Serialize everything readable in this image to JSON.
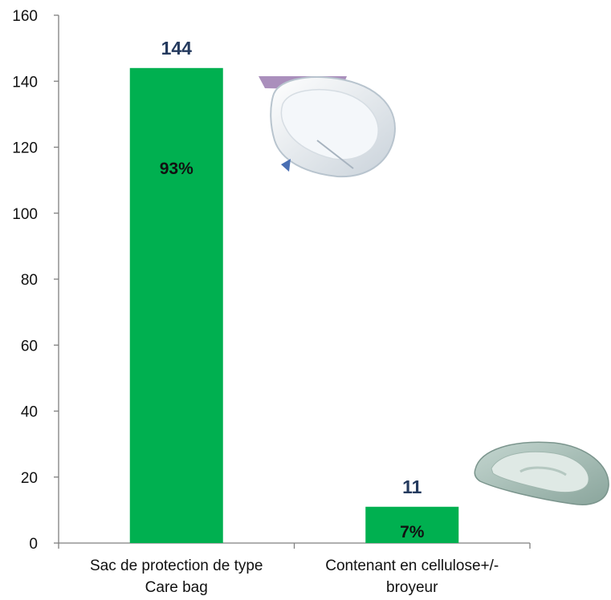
{
  "chart_data": {
    "type": "bar",
    "categories": [
      "Sac de protection de type Care bag",
      "Contenant en cellulose+/- broyeur"
    ],
    "category_lines": [
      [
        "Sac de protection de type",
        "Care bag"
      ],
      [
        "Contenant en cellulose+/-",
        "broyeur"
      ]
    ],
    "values": [
      144,
      11
    ],
    "data_labels": [
      "144",
      "11"
    ],
    "percent_labels": [
      "93%",
      "7%"
    ],
    "ylim": [
      0,
      160
    ],
    "yticks": [
      0,
      20,
      40,
      60,
      80,
      100,
      120,
      140,
      160
    ],
    "grid": false,
    "bar_color": "#00b050",
    "value_label_color": "#243a5e"
  },
  "illustrations": [
    "care-bag-photo",
    "cellulose-bedpan-photo"
  ]
}
